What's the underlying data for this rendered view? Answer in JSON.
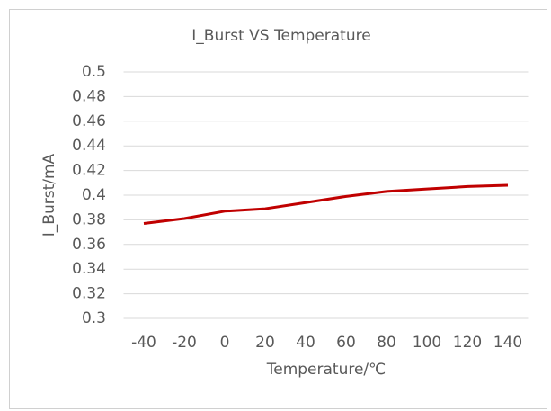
{
  "chart_data": {
    "type": "line",
    "title": "I_Burst VS Temperature",
    "x_label": "Temperature/℃",
    "y_label": "I_Burst/mA",
    "x": [
      -40,
      -20,
      0,
      20,
      40,
      60,
      80,
      100,
      120,
      140
    ],
    "series": [
      {
        "name": "I_Burst",
        "color": "#c00000",
        "values": [
          0.377,
          0.381,
          0.387,
          0.389,
          0.394,
          0.399,
          0.403,
          0.405,
          0.407,
          0.408
        ]
      }
    ],
    "xlim": [
      -50,
      150
    ],
    "xticks": [
      -40,
      -20,
      0,
      20,
      40,
      60,
      80,
      100,
      120,
      140
    ],
    "ylim": [
      0.3,
      0.5
    ],
    "yticks": [
      0.3,
      0.32,
      0.34,
      0.36,
      0.38,
      0.4,
      0.42,
      0.44,
      0.46,
      0.48,
      0.5
    ],
    "grid": true
  }
}
